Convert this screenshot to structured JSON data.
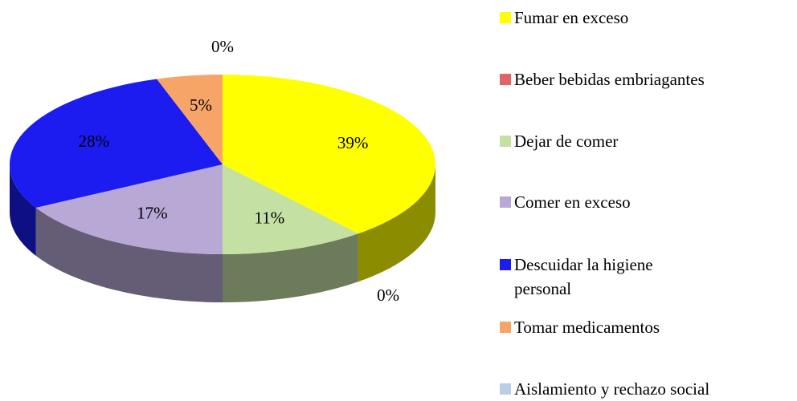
{
  "chart_data": {
    "type": "pie",
    "categories": [
      "Fumar en exceso",
      "Beber bebidas embriagantes",
      "Dejar de comer",
      "Comer en exceso",
      "Descuidar la higiene personal",
      "Tomar medicamentos",
      "Aislamiento y rechazo social"
    ],
    "values": [
      39,
      0,
      11,
      17,
      28,
      5,
      0
    ],
    "value_labels": [
      "39%",
      "0%",
      "11%",
      "17%",
      "28%",
      "5%",
      "0%"
    ],
    "colors": [
      "#ffff00",
      "#e06666",
      "#c4e0a2",
      "#b8a8d6",
      "#1c1cf0",
      "#f7a468",
      "#b9cde9"
    ]
  }
}
